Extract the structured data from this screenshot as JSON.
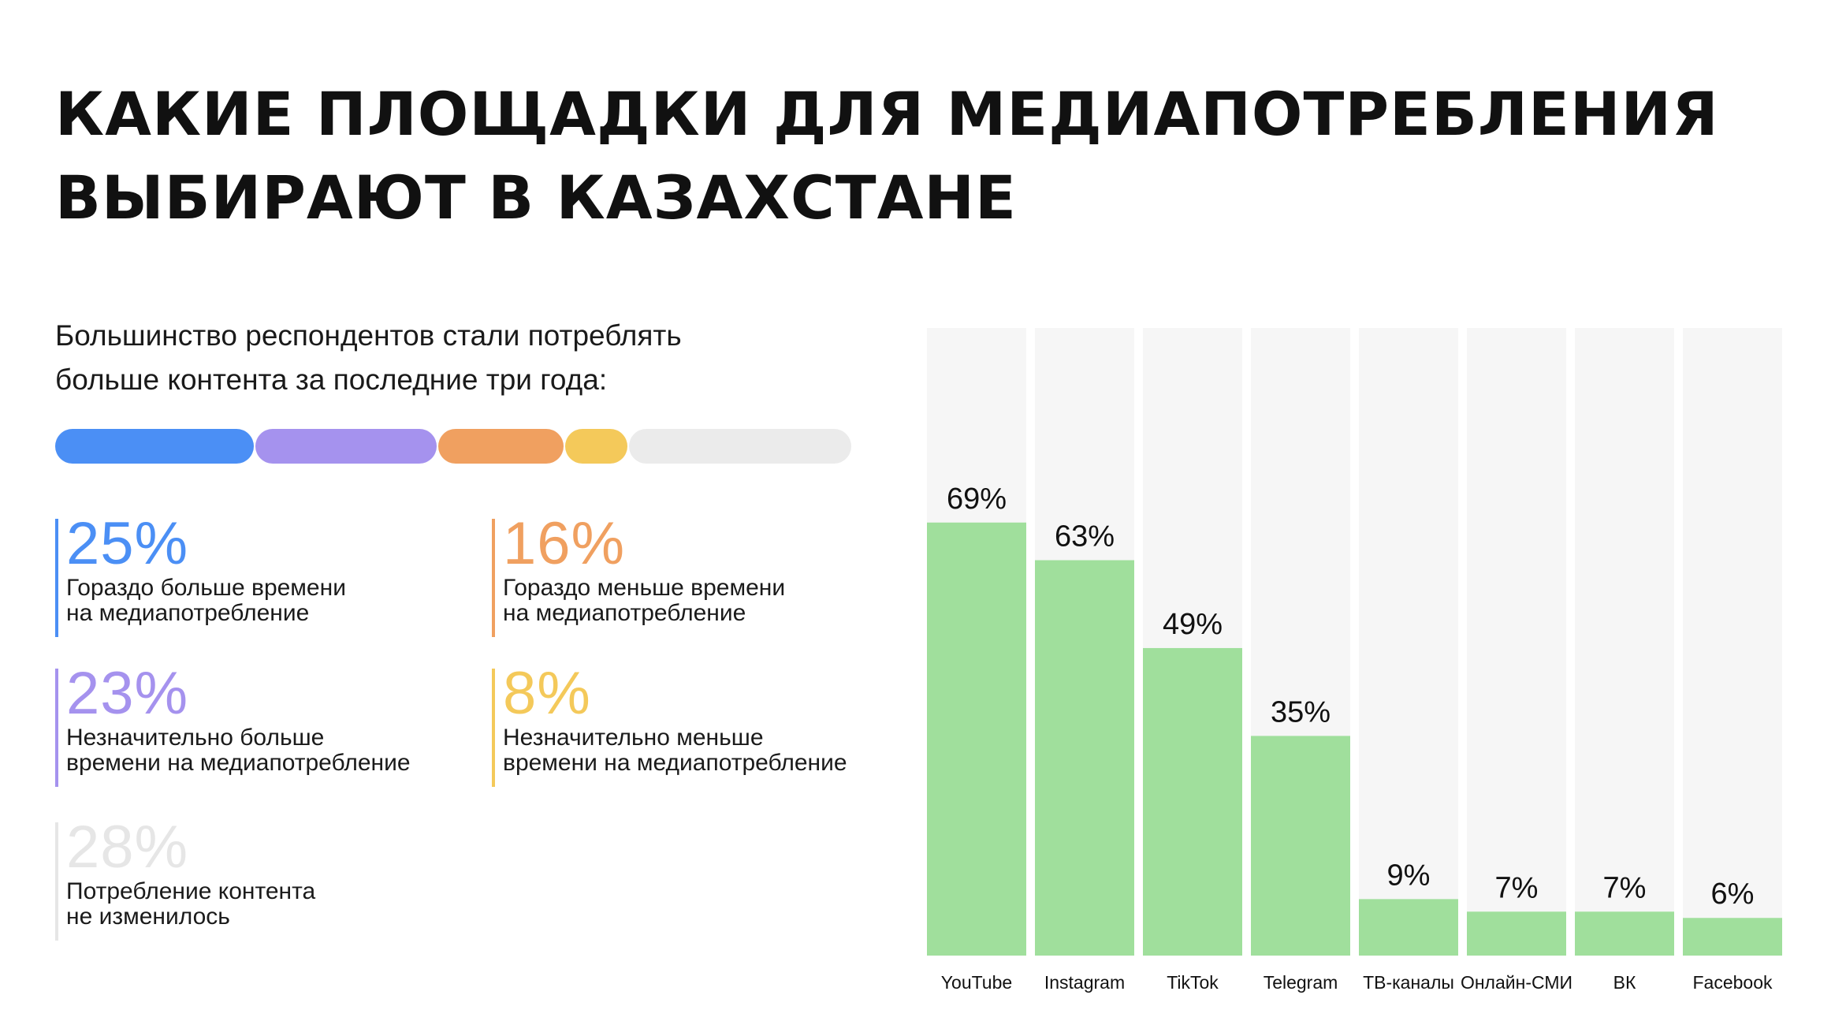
{
  "title": {
    "line1": "КАКИЕ ПЛОЩАДКИ ДЛЯ МЕДИАПОТРЕБЛЕНИЯ",
    "line2": "ВЫБИРАЮТ В КАЗАХСТАНЕ"
  },
  "lead": {
    "line1": "Большинство респондентов стали потреблять",
    "line2": "больше контента за последние три года:"
  },
  "stacked_bar": {
    "segments": [
      {
        "value": 25,
        "color": "#4b8ff5"
      },
      {
        "value": 23,
        "color": "#a592ee"
      },
      {
        "value": 16,
        "color": "#f0a060"
      },
      {
        "value": 8,
        "color": "#f4c95a"
      },
      {
        "value": 28,
        "color": "#ebebeb"
      }
    ]
  },
  "stats": [
    {
      "pct": "25%",
      "line1": "Гораздо больше времени",
      "line2": "на медиапотребление",
      "color": "#4b8ff5"
    },
    {
      "pct": "16%",
      "line1": "Гораздо меньше времени",
      "line2": "на медиапотребление",
      "color": "#f0a060"
    },
    {
      "pct": "23%",
      "line1": "Незначительно больше",
      "line2": "времени на медиапотребление",
      "color": "#a592ee"
    },
    {
      "pct": "8%",
      "line1": "Незначительно меньше",
      "line2": "времени на медиапотребление",
      "color": "#f4c95a"
    },
    {
      "pct": "28%",
      "line1": "Потребление контента",
      "line2": "не изменилось",
      "color": "#e6e6e6"
    }
  ],
  "chart_data": {
    "type": "bar",
    "categories": [
      "YouTube",
      "Instagram",
      "TikTok",
      "Telegram",
      "ТВ-каналы",
      "Онлайн-СМИ",
      "ВК",
      "Facebook"
    ],
    "values": [
      69,
      63,
      49,
      35,
      9,
      7,
      7,
      6
    ],
    "data_labels": [
      "69%",
      "63%",
      "49%",
      "35%",
      "9%",
      "7%",
      "7%",
      "6%"
    ],
    "ylim": [
      0,
      100
    ],
    "grid": false,
    "bar_color": "#a0df9c",
    "track_color": "#f6f6f6"
  }
}
